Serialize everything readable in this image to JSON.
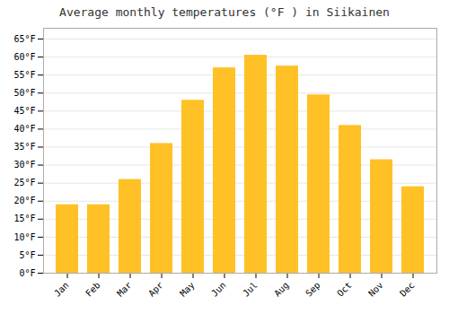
{
  "chart_data": {
    "type": "bar",
    "title": "Average monthly temperatures (°F ) in Siikainen",
    "categories": [
      "Jan",
      "Feb",
      "Mar",
      "Apr",
      "May",
      "Jun",
      "Jul",
      "Aug",
      "Sep",
      "Oct",
      "Nov",
      "Dec"
    ],
    "values": [
      19,
      19,
      26,
      36,
      48,
      57,
      60.5,
      57.5,
      49.5,
      41,
      31.5,
      24
    ],
    "color": "#FFC125",
    "ylim": [
      0,
      68
    ],
    "yticks": [
      {
        "value": 0,
        "label": "0°F"
      },
      {
        "value": 5,
        "label": "5°F"
      },
      {
        "value": 10,
        "label": "10°F"
      },
      {
        "value": 15,
        "label": "15°F"
      },
      {
        "value": 20,
        "label": "20°F"
      },
      {
        "value": 25,
        "label": "25°F"
      },
      {
        "value": 30,
        "label": "30°F"
      },
      {
        "value": 35,
        "label": "35°F"
      },
      {
        "value": 40,
        "label": "40°F"
      },
      {
        "value": 45,
        "label": "45°F"
      },
      {
        "value": 50,
        "label": "50°F"
      },
      {
        "value": 55,
        "label": "55°F"
      },
      {
        "value": 60,
        "label": "60°F"
      },
      {
        "value": 65,
        "label": "65°F"
      }
    ],
    "grid": true
  }
}
